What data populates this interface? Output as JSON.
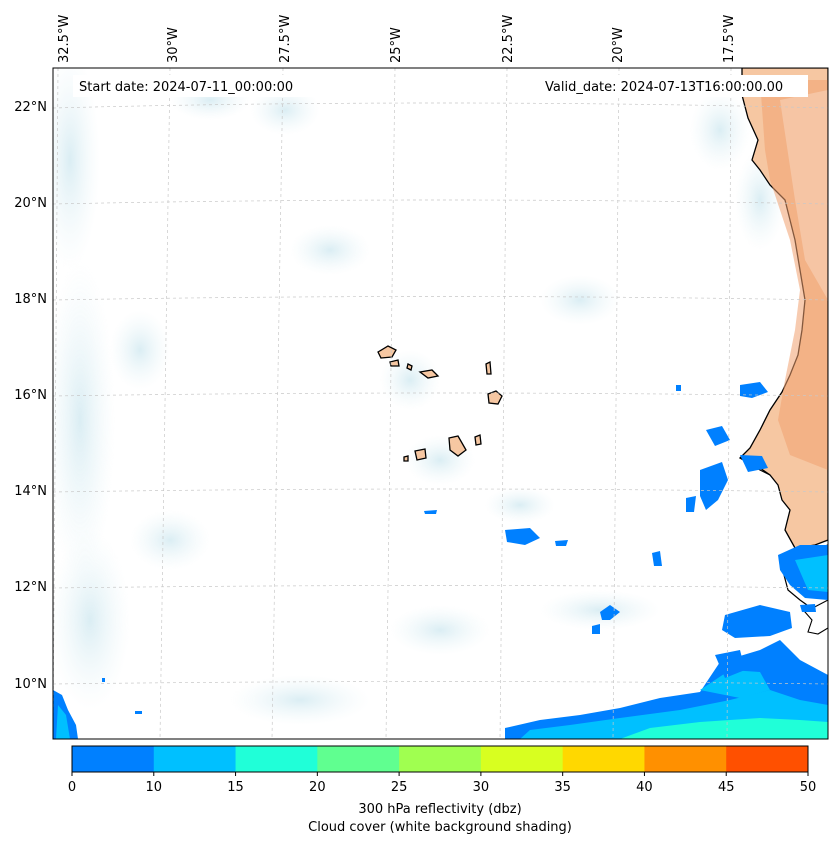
{
  "start_date": "Start date: 2024-07-11_00:00:00",
  "valid_date": "Valid_date: 2024-07-13T16:00:00.00",
  "lon_labels": [
    "32.5°W",
    "30°W",
    "27.5°W",
    "25°W",
    "22.5°W",
    "20°W",
    "17.5°W"
  ],
  "lat_labels": [
    "22°N",
    "20°N",
    "18°N",
    "16°N",
    "14°N",
    "12°N",
    "10°N"
  ],
  "colorbar": {
    "ticks": [
      "0",
      "10",
      "15",
      "20",
      "25",
      "30",
      "35",
      "40",
      "45",
      "50"
    ],
    "colors": [
      "#0080ff",
      "#00c0ff",
      "#20ffd8",
      "#60ff90",
      "#a0ff50",
      "#d8ff20",
      "#ffd800",
      "#ff9000",
      "#ff5000"
    ],
    "label_line1": "300 hPa reflectivity (dbz)",
    "label_line2": "Cloud cover (white background shading)"
  },
  "colors": {
    "land": "#f6c7a2",
    "desert": "#f0a070",
    "cloud": "#d7ecf2",
    "grid": "#c8c8c8",
    "reflectivity_low": "#0080ff",
    "reflectivity_mid": "#00c0ff",
    "reflectivity_high": "#20ffd8"
  }
}
